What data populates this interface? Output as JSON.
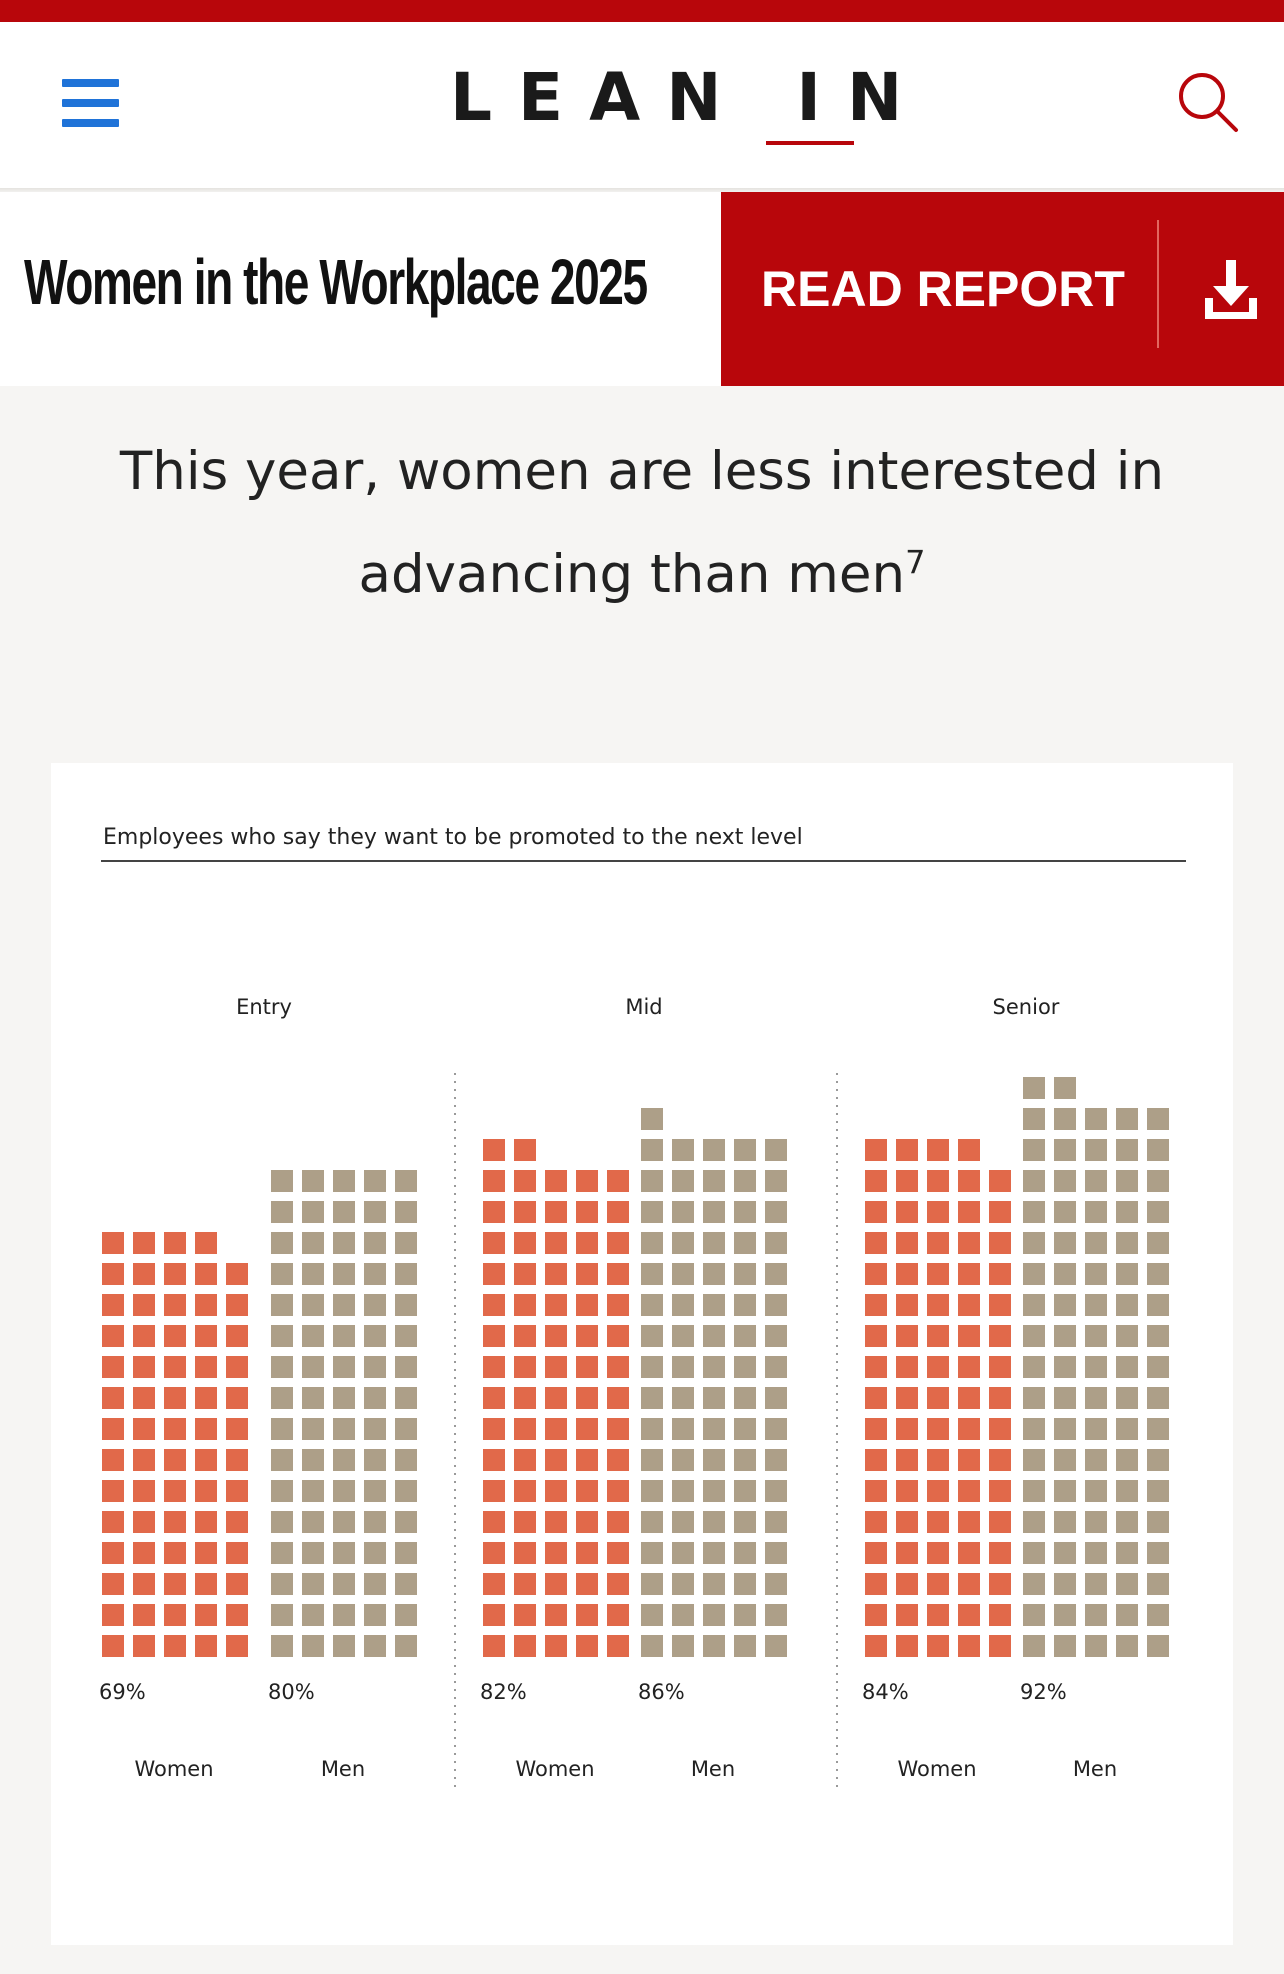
{
  "header": {
    "logo": "LEAN IN",
    "menu_icon": "hamburger-menu-icon",
    "search_icon": "search-icon"
  },
  "title_bar": {
    "title": "Women in the Workplace 2025",
    "cta_label": "READ REPORT",
    "cta_icon": "download-icon"
  },
  "headline": {
    "text": "This year, women are less interested in advancing than men",
    "footnote": "7"
  },
  "colors": {
    "brand_red": "#b8060b",
    "menu_blue": "#1f73d8",
    "women": "#e1694a",
    "men": "#ad9f88"
  },
  "chart_data": {
    "type": "waffle",
    "title": "Employees who say they want to be promoted to the next level",
    "unit": "%",
    "groups": [
      {
        "label": "Entry",
        "bars": [
          {
            "label": "Women",
            "value": 69,
            "value_label": "69%"
          },
          {
            "label": "Men",
            "value": 80,
            "value_label": "80%"
          }
        ]
      },
      {
        "label": "Mid",
        "bars": [
          {
            "label": "Women",
            "value": 82,
            "value_label": "82%"
          },
          {
            "label": "Men",
            "value": 86,
            "value_label": "86%"
          }
        ]
      },
      {
        "label": "Senior",
        "bars": [
          {
            "label": "Women",
            "value": 84,
            "value_label": "84%"
          },
          {
            "label": "Men",
            "value": 92,
            "value_label": "92%"
          }
        ]
      }
    ]
  }
}
